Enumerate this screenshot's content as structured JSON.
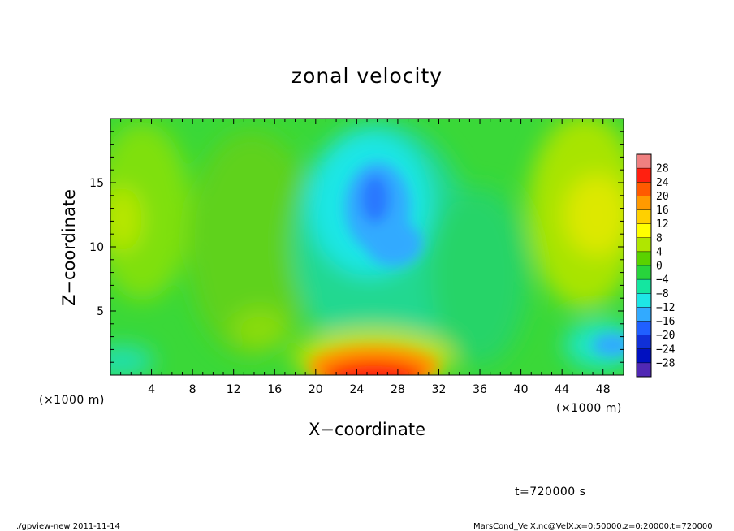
{
  "chart_data": {
    "type": "heatmap",
    "title": "zonal velocity",
    "xlabel": "X−coordinate",
    "ylabel": "Z−coordinate",
    "x_unit": "(×1000 m)",
    "y_unit": "(×1000 m)",
    "xlim": [
      0,
      50
    ],
    "ylim": [
      0,
      20
    ],
    "x_ticks": [
      4,
      8,
      12,
      16,
      20,
      24,
      28,
      32,
      36,
      40,
      44,
      48
    ],
    "y_ticks": [
      5,
      10,
      15
    ],
    "time_label": "t=720000 s",
    "colorbar": {
      "levels": [
        28,
        24,
        20,
        16,
        12,
        8,
        4,
        0,
        -4,
        -8,
        -12,
        -16,
        -20,
        -24,
        -28
      ],
      "level_labels": [
        "28",
        "24",
        "20",
        "16",
        "12",
        "8",
        "4",
        "0",
        "−4",
        "−8",
        "−12",
        "−16",
        "−20",
        "−24",
        "−28"
      ],
      "colors": [
        "#f08080",
        "#ff2010",
        "#ff5a00",
        "#ff9a00",
        "#ffd000",
        "#ffff00",
        "#b0e600",
        "#5ad200",
        "#28d43c",
        "#14e6a0",
        "#1ee6e6",
        "#32aaff",
        "#2060ff",
        "#1030d8",
        "#0010c0",
        "#5028b4"
      ]
    },
    "features": [
      {
        "x": 26,
        "z": 0.4,
        "value": 26
      },
      {
        "x": 24,
        "z": 13,
        "value": -14
      },
      {
        "x": 28,
        "z": 10,
        "value": -10
      },
      {
        "x": 47,
        "z": 2.5,
        "value": -9
      },
      {
        "x": 47,
        "z": 12,
        "value": 11
      },
      {
        "x": 1,
        "z": 12,
        "value": 8
      },
      {
        "x": 13,
        "z": 10,
        "value": 1
      }
    ]
  },
  "footer": {
    "left": "./gpview-new  2011-11-14",
    "right": "MarsCond_VelX.nc@VelX,x=0:50000,z=0:20000,t=720000"
  }
}
